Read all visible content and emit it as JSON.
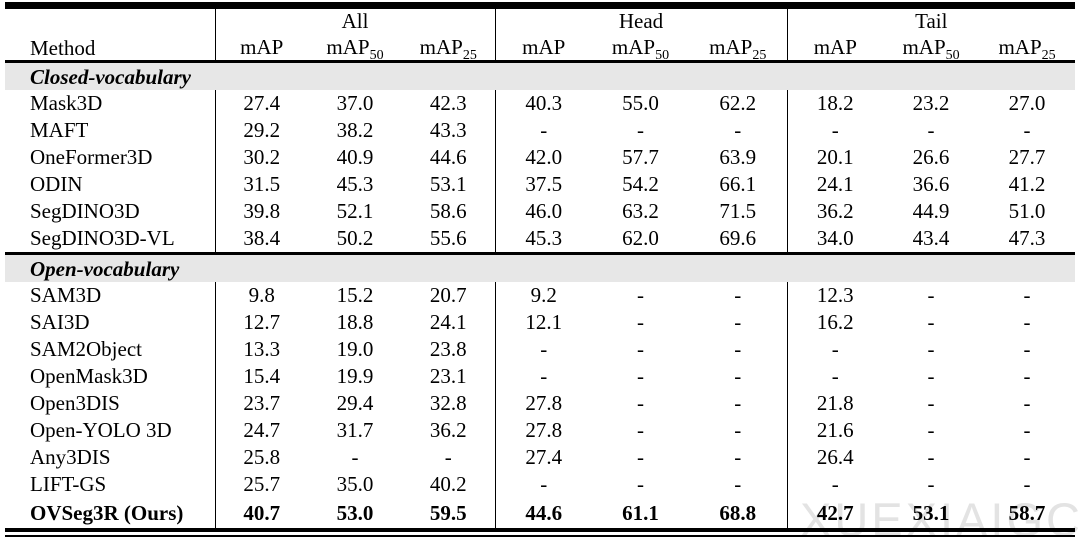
{
  "watermark": "XUEXIAIGC",
  "colors": {
    "section_band": "#e7e7e7",
    "watermark": "#e3e3e3",
    "rule": "#000000"
  },
  "header": {
    "method_label": "Method",
    "groups": [
      "All",
      "Head",
      "Tail"
    ],
    "metrics": [
      {
        "base": "mAP",
        "sub": ""
      },
      {
        "base": "mAP",
        "sub": "50"
      },
      {
        "base": "mAP",
        "sub": "25"
      }
    ]
  },
  "sections": [
    {
      "label": "Closed-vocabulary",
      "rows": [
        {
          "method": "Mask3D",
          "values": [
            "27.4",
            "37.0",
            "42.3",
            "40.3",
            "55.0",
            "62.2",
            "18.2",
            "23.2",
            "27.0"
          ]
        },
        {
          "method": "MAFT",
          "values": [
            "29.2",
            "38.2",
            "43.3",
            "-",
            "-",
            "-",
            "-",
            "-",
            "-"
          ]
        },
        {
          "method": "OneFormer3D",
          "values": [
            "30.2",
            "40.9",
            "44.6",
            "42.0",
            "57.7",
            "63.9",
            "20.1",
            "26.6",
            "27.7"
          ]
        },
        {
          "method": "ODIN",
          "values": [
            "31.5",
            "45.3",
            "53.1",
            "37.5",
            "54.2",
            "66.1",
            "24.1",
            "36.6",
            "41.2"
          ]
        },
        {
          "method": "SegDINO3D",
          "values": [
            "39.8",
            "52.1",
            "58.6",
            "46.0",
            "63.2",
            "71.5",
            "36.2",
            "44.9",
            "51.0"
          ]
        },
        {
          "method": "SegDINO3D-VL",
          "values": [
            "38.4",
            "50.2",
            "55.6",
            "45.3",
            "62.0",
            "69.6",
            "34.0",
            "43.4",
            "47.3"
          ]
        }
      ]
    },
    {
      "label": "Open-vocabulary",
      "rows": [
        {
          "method": "SAM3D",
          "values": [
            "9.8",
            "15.2",
            "20.7",
            "9.2",
            "-",
            "-",
            "12.3",
            "-",
            "-"
          ]
        },
        {
          "method": "SAI3D",
          "values": [
            "12.7",
            "18.8",
            "24.1",
            "12.1",
            "-",
            "-",
            "16.2",
            "-",
            "-"
          ]
        },
        {
          "method": "SAM2Object",
          "values": [
            "13.3",
            "19.0",
            "23.8",
            "-",
            "-",
            "-",
            "-",
            "-",
            "-"
          ]
        },
        {
          "method": "OpenMask3D",
          "values": [
            "15.4",
            "19.9",
            "23.1",
            "-",
            "-",
            "-",
            "-",
            "-",
            "-"
          ]
        },
        {
          "method": "Open3DIS",
          "values": [
            "23.7",
            "29.4",
            "32.8",
            "27.8",
            "-",
            "-",
            "21.8",
            "-",
            "-"
          ]
        },
        {
          "method": "Open-YOLO 3D",
          "values": [
            "24.7",
            "31.7",
            "36.2",
            "27.8",
            "-",
            "-",
            "21.6",
            "-",
            "-"
          ]
        },
        {
          "method": "Any3DIS",
          "values": [
            "25.8",
            "-",
            "-",
            "27.4",
            "-",
            "-",
            "26.4",
            "-",
            "-"
          ]
        },
        {
          "method": "LIFT-GS",
          "values": [
            "25.7",
            "35.0",
            "40.2",
            "-",
            "-",
            "-",
            "-",
            "-",
            "-"
          ]
        },
        {
          "method": "OVSeg3R (Ours)",
          "bold": true,
          "values": [
            "40.7",
            "53.0",
            "59.5",
            "44.6",
            "61.1",
            "68.8",
            "42.7",
            "53.1",
            "58.7"
          ]
        }
      ]
    }
  ]
}
